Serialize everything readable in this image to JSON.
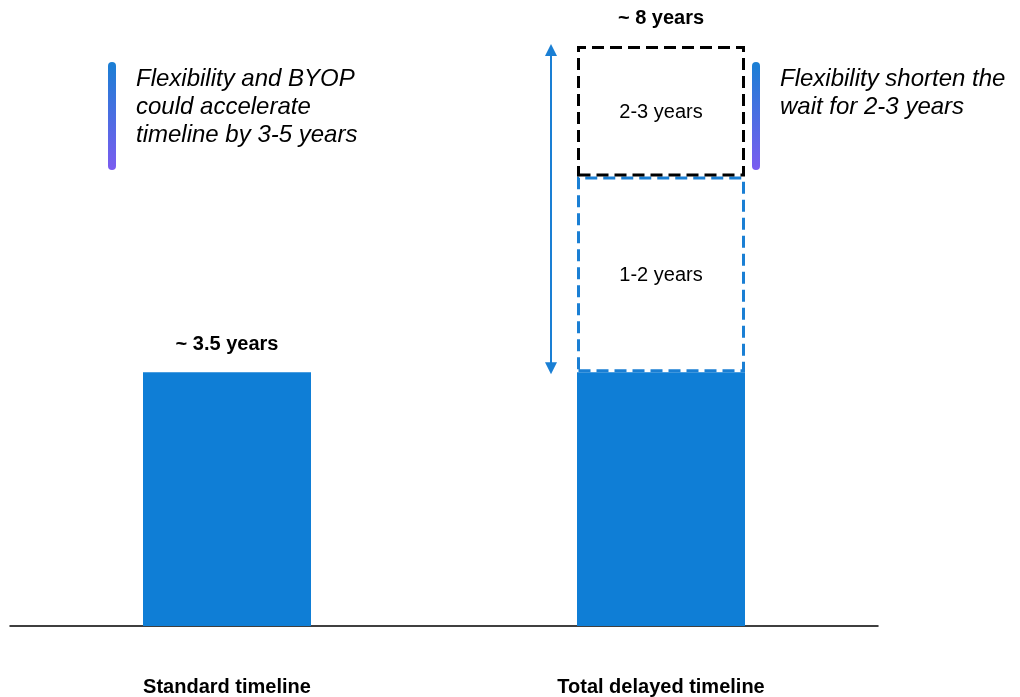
{
  "chart_data": {
    "type": "bar",
    "stacked": true,
    "ylim": [
      0,
      8
    ],
    "categories": [
      "Standard timeline",
      "Total delayed timeline"
    ],
    "series": [
      {
        "color": "#0f7ed6",
        "values": [
          3.5,
          3.5
        ]
      },
      {
        "color": "#1a7fd4",
        "line_style": "dashed",
        "values": [
          null,
          2.7
        ],
        "value_labels": [
          null,
          "1-2 years"
        ]
      },
      {
        "color": "#000000",
        "line_style": "dashed",
        "values": [
          null,
          1.8
        ],
        "value_labels": [
          null,
          "2-3 years"
        ]
      }
    ],
    "totals": [
      "~ 3.5 years",
      "~ 8 years"
    ],
    "annotations": [
      "Flexibility and BYOP could accelerate timeline by 3-5 years",
      "Flexibility shorten the wait for 2-3 years"
    ]
  }
}
